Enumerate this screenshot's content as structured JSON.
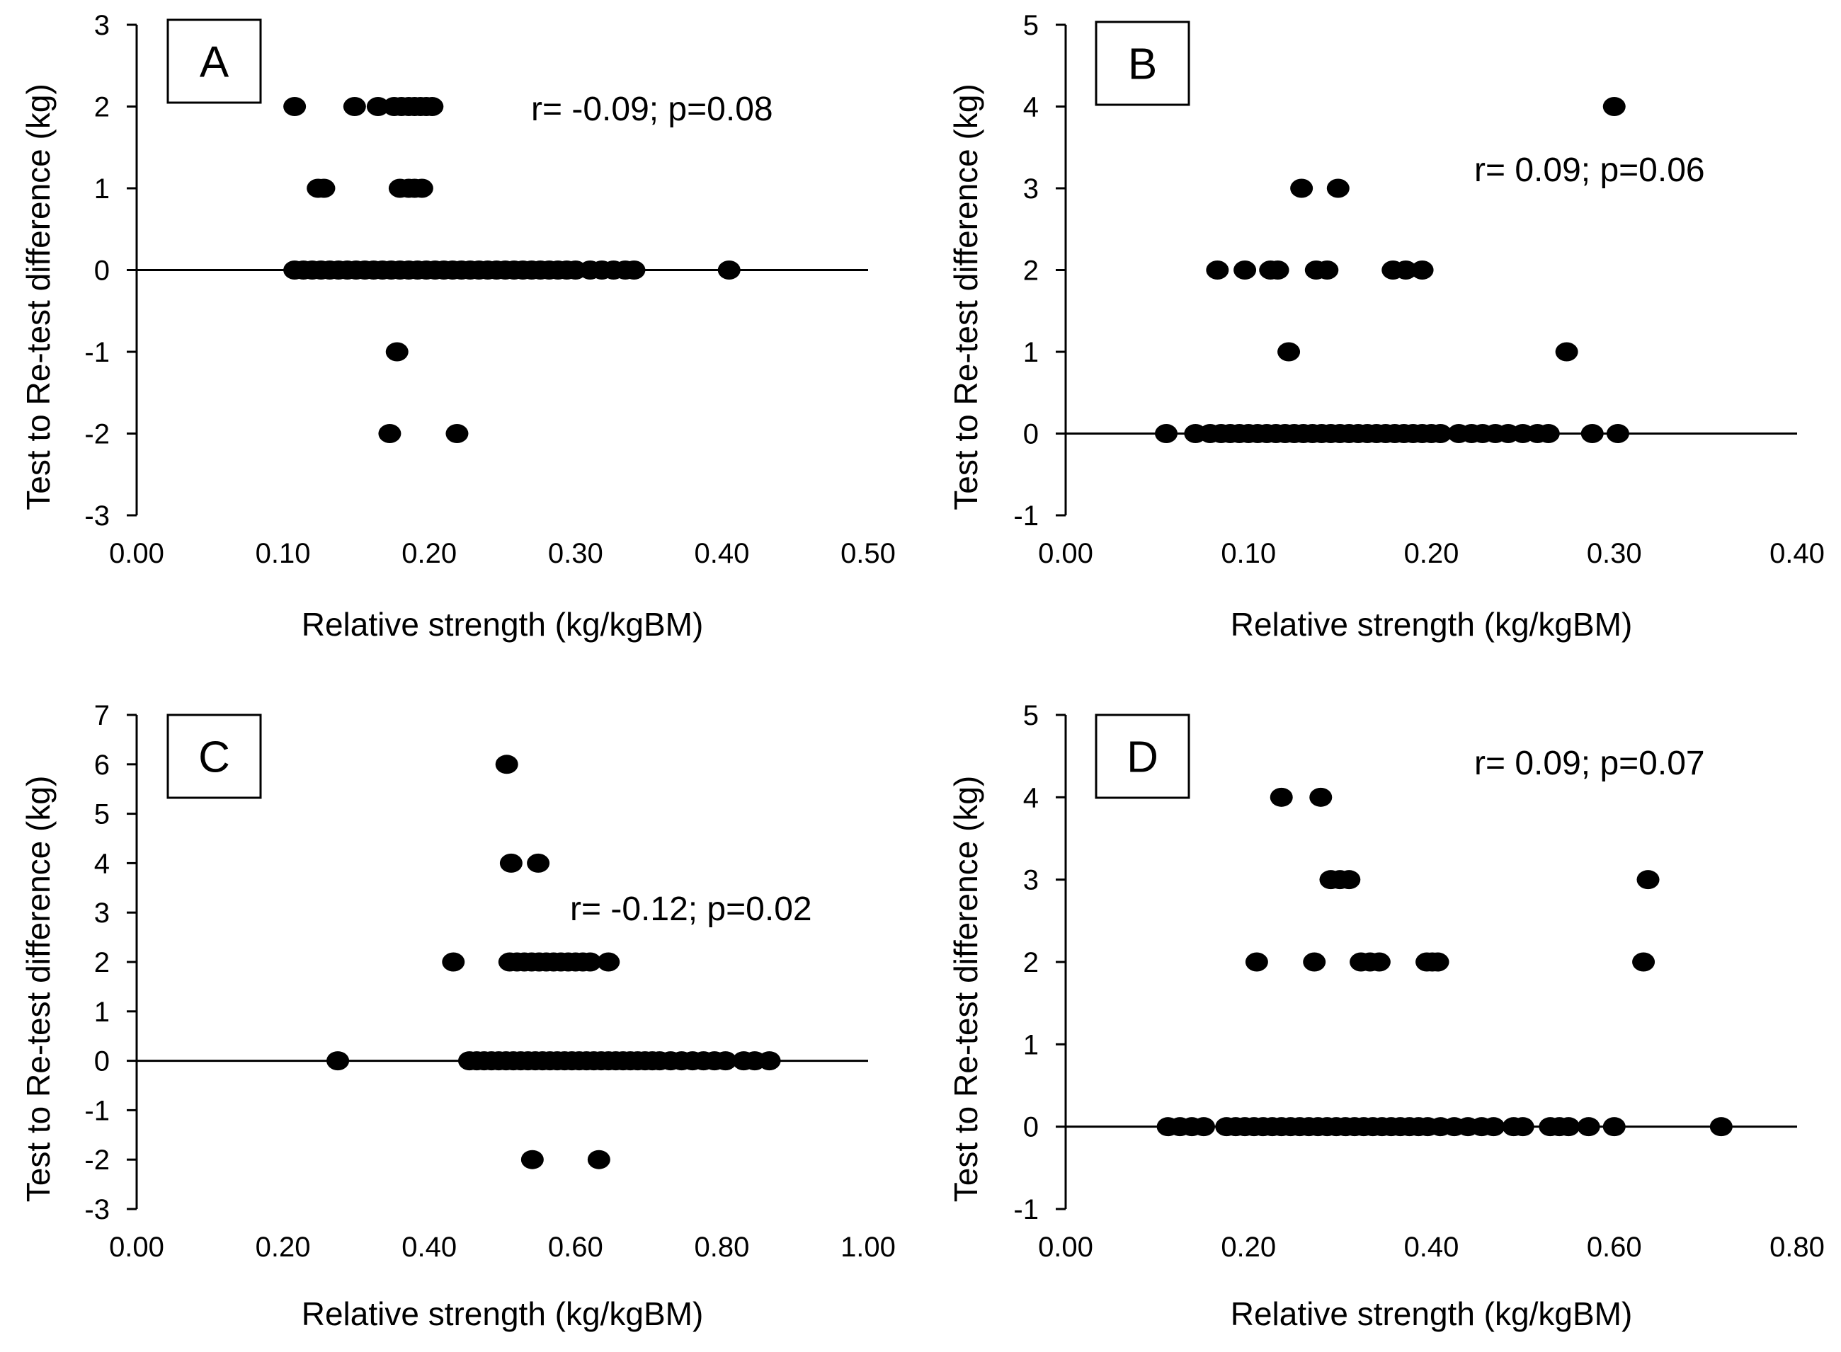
{
  "chart_data": [
    {
      "panel": "A",
      "type": "scatter",
      "title": "",
      "xlabel": "Relative strength (kg/kgBM)",
      "ylabel": "Test to Re-test difference (kg)",
      "annotation": "r= -0.09; p=0.08",
      "xlim": [
        0,
        0.5
      ],
      "ylim": [
        -3,
        3
      ],
      "x_ticks": [
        0,
        0.1,
        0.2,
        0.3,
        0.4,
        0.5
      ],
      "x_tick_labels": [
        "0.00",
        "0.10",
        "0.20",
        "0.30",
        "0.40",
        "0.50"
      ],
      "y_ticks": [
        -3,
        -2,
        -1,
        0,
        1,
        2,
        3
      ],
      "y_tick_labels": [
        "-3",
        "-2",
        "-1",
        "0",
        "1",
        "2",
        "3"
      ],
      "zero_line": true,
      "points": [
        [
          0.108,
          2
        ],
        [
          0.149,
          2
        ],
        [
          0.165,
          2
        ],
        [
          0.176,
          2
        ],
        [
          0.181,
          2
        ],
        [
          0.186,
          2
        ],
        [
          0.19,
          2
        ],
        [
          0.194,
          2
        ],
        [
          0.198,
          2
        ],
        [
          0.202,
          2
        ],
        [
          0.124,
          1
        ],
        [
          0.128,
          1
        ],
        [
          0.18,
          1
        ],
        [
          0.186,
          1
        ],
        [
          0.19,
          1
        ],
        [
          0.195,
          1
        ],
        [
          0.178,
          -1
        ],
        [
          0.173,
          -2
        ],
        [
          0.219,
          -2
        ],
        [
          0.108,
          0
        ],
        [
          0.114,
          0
        ],
        [
          0.12,
          0
        ],
        [
          0.126,
          0
        ],
        [
          0.132,
          0
        ],
        [
          0.138,
          0
        ],
        [
          0.144,
          0
        ],
        [
          0.15,
          0
        ],
        [
          0.156,
          0
        ],
        [
          0.162,
          0
        ],
        [
          0.168,
          0
        ],
        [
          0.174,
          0
        ],
        [
          0.18,
          0
        ],
        [
          0.186,
          0
        ],
        [
          0.192,
          0
        ],
        [
          0.198,
          0
        ],
        [
          0.204,
          0
        ],
        [
          0.21,
          0
        ],
        [
          0.216,
          0
        ],
        [
          0.222,
          0
        ],
        [
          0.228,
          0
        ],
        [
          0.234,
          0
        ],
        [
          0.24,
          0
        ],
        [
          0.246,
          0
        ],
        [
          0.252,
          0
        ],
        [
          0.258,
          0
        ],
        [
          0.264,
          0
        ],
        [
          0.27,
          0
        ],
        [
          0.276,
          0
        ],
        [
          0.282,
          0
        ],
        [
          0.288,
          0
        ],
        [
          0.294,
          0
        ],
        [
          0.3,
          0
        ],
        [
          0.31,
          0
        ],
        [
          0.318,
          0
        ],
        [
          0.326,
          0
        ],
        [
          0.334,
          0
        ],
        [
          0.34,
          0
        ],
        [
          0.405,
          0
        ]
      ]
    },
    {
      "panel": "B",
      "type": "scatter",
      "title": "",
      "xlabel": "Relative strength (kg/kgBM)",
      "ylabel": "Test to Re-test difference (kg)",
      "annotation": "r= 0.09; p=0.06",
      "xlim": [
        0,
        0.4
      ],
      "ylim": [
        -1,
        5
      ],
      "x_ticks": [
        0,
        0.1,
        0.2,
        0.3,
        0.4
      ],
      "x_tick_labels": [
        "0.00",
        "0.10",
        "0.20",
        "0.30",
        "0.40"
      ],
      "y_ticks": [
        -1,
        0,
        1,
        2,
        3,
        4,
        5
      ],
      "y_tick_labels": [
        "-1",
        "0",
        "1",
        "2",
        "3",
        "4",
        "5"
      ],
      "zero_line": true,
      "points": [
        [
          0.3,
          4
        ],
        [
          0.129,
          3
        ],
        [
          0.149,
          3
        ],
        [
          0.083,
          2
        ],
        [
          0.098,
          2
        ],
        [
          0.112,
          2
        ],
        [
          0.116,
          2
        ],
        [
          0.137,
          2
        ],
        [
          0.143,
          2
        ],
        [
          0.179,
          2
        ],
        [
          0.186,
          2
        ],
        [
          0.195,
          2
        ],
        [
          0.122,
          1
        ],
        [
          0.274,
          1
        ],
        [
          0.055,
          0
        ],
        [
          0.071,
          0
        ],
        [
          0.079,
          0
        ],
        [
          0.085,
          0
        ],
        [
          0.09,
          0
        ],
        [
          0.095,
          0
        ],
        [
          0.1,
          0
        ],
        [
          0.105,
          0
        ],
        [
          0.11,
          0
        ],
        [
          0.115,
          0
        ],
        [
          0.12,
          0
        ],
        [
          0.125,
          0
        ],
        [
          0.13,
          0
        ],
        [
          0.135,
          0
        ],
        [
          0.14,
          0
        ],
        [
          0.145,
          0
        ],
        [
          0.15,
          0
        ],
        [
          0.155,
          0
        ],
        [
          0.16,
          0
        ],
        [
          0.165,
          0
        ],
        [
          0.17,
          0
        ],
        [
          0.175,
          0
        ],
        [
          0.18,
          0
        ],
        [
          0.185,
          0
        ],
        [
          0.19,
          0
        ],
        [
          0.195,
          0
        ],
        [
          0.2,
          0
        ],
        [
          0.205,
          0
        ],
        [
          0.215,
          0
        ],
        [
          0.222,
          0
        ],
        [
          0.228,
          0
        ],
        [
          0.235,
          0
        ],
        [
          0.242,
          0
        ],
        [
          0.25,
          0
        ],
        [
          0.258,
          0
        ],
        [
          0.264,
          0
        ],
        [
          0.288,
          0
        ],
        [
          0.302,
          0
        ]
      ]
    },
    {
      "panel": "C",
      "type": "scatter",
      "title": "",
      "xlabel": "Relative strength (kg/kgBM)",
      "ylabel": "Test to Re-test difference (kg)",
      "annotation": "r= -0.12; p=0.02",
      "xlim": [
        0,
        1
      ],
      "ylim": [
        -3,
        7
      ],
      "x_ticks": [
        0,
        0.2,
        0.4,
        0.6,
        0.8,
        1.0
      ],
      "x_tick_labels": [
        "0.00",
        "0.20",
        "0.40",
        "0.60",
        "0.80",
        "1.00"
      ],
      "y_ticks": [
        -3,
        -2,
        -1,
        0,
        1,
        2,
        3,
        4,
        5,
        6,
        7
      ],
      "y_tick_labels": [
        "-3",
        "-2",
        "-1",
        "0",
        "1",
        "2",
        "3",
        "4",
        "5",
        "6",
        "7"
      ],
      "zero_line": true,
      "points": [
        [
          0.506,
          6
        ],
        [
          0.512,
          4
        ],
        [
          0.549,
          4
        ],
        [
          0.433,
          2
        ],
        [
          0.51,
          2
        ],
        [
          0.52,
          2
        ],
        [
          0.53,
          2
        ],
        [
          0.54,
          2
        ],
        [
          0.55,
          2
        ],
        [
          0.56,
          2
        ],
        [
          0.57,
          2
        ],
        [
          0.58,
          2
        ],
        [
          0.59,
          2
        ],
        [
          0.6,
          2
        ],
        [
          0.61,
          2
        ],
        [
          0.62,
          2
        ],
        [
          0.645,
          2
        ],
        [
          0.541,
          -2
        ],
        [
          0.632,
          -2
        ],
        [
          0.275,
          0
        ],
        [
          0.455,
          0
        ],
        [
          0.465,
          0
        ],
        [
          0.475,
          0
        ],
        [
          0.485,
          0
        ],
        [
          0.495,
          0
        ],
        [
          0.505,
          0
        ],
        [
          0.515,
          0
        ],
        [
          0.525,
          0
        ],
        [
          0.535,
          0
        ],
        [
          0.545,
          0
        ],
        [
          0.555,
          0
        ],
        [
          0.565,
          0
        ],
        [
          0.575,
          0
        ],
        [
          0.585,
          0
        ],
        [
          0.595,
          0
        ],
        [
          0.605,
          0
        ],
        [
          0.615,
          0
        ],
        [
          0.625,
          0
        ],
        [
          0.635,
          0
        ],
        [
          0.645,
          0
        ],
        [
          0.655,
          0
        ],
        [
          0.665,
          0
        ],
        [
          0.675,
          0
        ],
        [
          0.685,
          0
        ],
        [
          0.695,
          0
        ],
        [
          0.705,
          0
        ],
        [
          0.715,
          0
        ],
        [
          0.73,
          0
        ],
        [
          0.745,
          0
        ],
        [
          0.76,
          0
        ],
        [
          0.775,
          0
        ],
        [
          0.79,
          0
        ],
        [
          0.805,
          0
        ],
        [
          0.83,
          0
        ],
        [
          0.845,
          0
        ],
        [
          0.865,
          0
        ]
      ]
    },
    {
      "panel": "D",
      "type": "scatter",
      "title": "",
      "xlabel": "Relative strength (kg/kgBM)",
      "ylabel": "Test to Re-test difference (kg)",
      "annotation": "r= 0.09; p=0.07",
      "xlim": [
        0,
        0.8
      ],
      "ylim": [
        -1,
        5
      ],
      "x_ticks": [
        0,
        0.2,
        0.4,
        0.6,
        0.8
      ],
      "x_tick_labels": [
        "0.00",
        "0.20",
        "0.40",
        "0.60",
        "0.80"
      ],
      "y_ticks": [
        -1,
        0,
        1,
        2,
        3,
        4,
        5
      ],
      "y_tick_labels": [
        "-1",
        "0",
        "1",
        "2",
        "3",
        "4",
        "5"
      ],
      "zero_line": true,
      "points": [
        [
          0.236,
          4
        ],
        [
          0.279,
          4
        ],
        [
          0.29,
          3
        ],
        [
          0.3,
          3
        ],
        [
          0.31,
          3
        ],
        [
          0.637,
          3
        ],
        [
          0.209,
          2
        ],
        [
          0.272,
          2
        ],
        [
          0.323,
          2
        ],
        [
          0.333,
          2
        ],
        [
          0.343,
          2
        ],
        [
          0.395,
          2
        ],
        [
          0.401,
          2
        ],
        [
          0.407,
          2
        ],
        [
          0.632,
          2
        ],
        [
          0.112,
          0
        ],
        [
          0.125,
          0
        ],
        [
          0.138,
          0
        ],
        [
          0.151,
          0
        ],
        [
          0.176,
          0
        ],
        [
          0.186,
          0
        ],
        [
          0.196,
          0
        ],
        [
          0.206,
          0
        ],
        [
          0.216,
          0
        ],
        [
          0.226,
          0
        ],
        [
          0.236,
          0
        ],
        [
          0.246,
          0
        ],
        [
          0.256,
          0
        ],
        [
          0.266,
          0
        ],
        [
          0.276,
          0
        ],
        [
          0.286,
          0
        ],
        [
          0.296,
          0
        ],
        [
          0.306,
          0
        ],
        [
          0.316,
          0
        ],
        [
          0.326,
          0
        ],
        [
          0.336,
          0
        ],
        [
          0.346,
          0
        ],
        [
          0.356,
          0
        ],
        [
          0.366,
          0
        ],
        [
          0.376,
          0
        ],
        [
          0.386,
          0
        ],
        [
          0.396,
          0
        ],
        [
          0.41,
          0
        ],
        [
          0.425,
          0
        ],
        [
          0.44,
          0
        ],
        [
          0.455,
          0
        ],
        [
          0.468,
          0
        ],
        [
          0.49,
          0
        ],
        [
          0.5,
          0
        ],
        [
          0.53,
          0
        ],
        [
          0.54,
          0
        ],
        [
          0.55,
          0
        ],
        [
          0.572,
          0
        ],
        [
          0.6,
          0
        ],
        [
          0.717,
          0
        ]
      ]
    }
  ]
}
